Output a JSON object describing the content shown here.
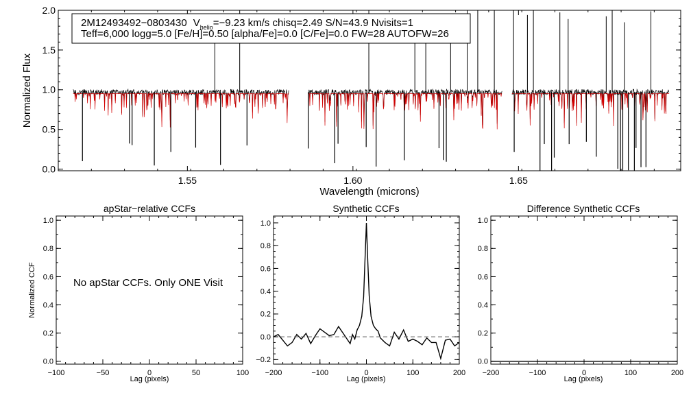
{
  "chart_data": [
    {
      "type": "line",
      "title": "",
      "info_line1": {
        "star": "2M12493492−0803430",
        "v_label": "V",
        "v_sub": "helio",
        "v_rest": "=−9.23 km/s  chisq=2.49  S/N=43.9  Nvisits=1"
      },
      "info_line2": "Teff=6,000 logg=5.0 [Fe/H]=0.50 [alpha/Fe]=0.0 [C/Fe]=0.0 FW=28 AUTOFW=26",
      "xlabel": "Wavelength (microns)",
      "ylabel": "Normalized Flux",
      "xlim": [
        1.511,
        1.699
      ],
      "ylim": [
        -0.02,
        2.0
      ],
      "xticks": [
        1.55,
        1.6,
        1.65
      ],
      "xtick_labels": [
        "1.55",
        "1.60",
        "1.65"
      ],
      "yticks": [
        0.0,
        0.5,
        1.0,
        1.5,
        2.0
      ],
      "ytick_labels": [
        "0.0",
        "0.5",
        "1.0",
        "1.5",
        "2.0"
      ],
      "series": [
        {
          "name": "observed spectrum",
          "color": "#000000",
          "segments": [
            [
              1.5155,
              1.5806
            ],
            [
              1.5865,
              1.645
            ],
            [
              1.648,
              1.6955
            ]
          ],
          "continuum": 0.97
        },
        {
          "name": "synthetic model",
          "color": "#d40000",
          "segments": [
            [
              1.5155,
              1.5806
            ],
            [
              1.5865,
              1.645
            ],
            [
              1.648,
              1.6955
            ]
          ],
          "continuum": 0.95
        }
      ],
      "spikes_up": [
        1.5583,
        1.5658,
        1.6048,
        1.6187,
        1.622,
        1.6295,
        1.6345,
        1.6377,
        1.6427,
        1.6485,
        1.6527,
        1.6545,
        1.6625,
        1.665,
        1.6765,
        1.6783,
        1.682,
        1.69
      ],
      "spikes_down": [
        1.5183,
        1.5325,
        1.5333,
        1.54,
        1.545,
        1.5525,
        1.56,
        1.568,
        1.5865,
        1.5945,
        1.5955,
        1.604,
        1.607,
        1.6155,
        1.626,
        1.6273,
        1.6282,
        1.6487,
        1.6565,
        1.6578,
        1.66,
        1.6608,
        1.6653,
        1.6705,
        1.6735,
        1.68,
        1.6808,
        1.6815,
        1.6832,
        1.685,
        1.6855,
        1.687,
        1.6885
      ]
    },
    {
      "type": "line",
      "title": "apStar−relative CCFs",
      "xlabel": "Lag (pixels)",
      "ylabel": "Normalized CCF",
      "xlim": [
        -100,
        100
      ],
      "ylim": [
        -0.02,
        1.03
      ],
      "xticks": [
        -100,
        -50,
        0,
        50,
        100
      ],
      "xtick_labels": [
        "−100",
        "−50",
        "0",
        "50",
        "100"
      ],
      "yticks": [
        0.0,
        0.2,
        0.4,
        0.6,
        0.8,
        1.0
      ],
      "ytick_labels": [
        "0.0",
        "0.2",
        "0.4",
        "0.6",
        "0.8",
        "1.0"
      ],
      "message": "No apStar CCFs.  Only ONE Visit",
      "series": []
    },
    {
      "type": "line",
      "title": "Synthetic CCFs",
      "xlabel": "Lag (pixels)",
      "ylabel": "",
      "xlim": [
        -200,
        200
      ],
      "ylim": [
        -0.24,
        1.06
      ],
      "xticks": [
        -200,
        -100,
        0,
        100,
        200
      ],
      "xtick_labels": [
        "−200",
        "−100",
        "0",
        "100",
        "200"
      ],
      "yticks": [
        -0.2,
        0.0,
        0.2,
        0.4,
        0.6,
        0.8,
        1.0
      ],
      "ytick_labels": [
        "−0.2",
        "0.0",
        "0.2",
        "0.4",
        "0.6",
        "0.8",
        "1.0"
      ],
      "series": [
        {
          "name": "synthetic CCF",
          "color": "#000000",
          "x": [
            -200,
            -190,
            -180,
            -170,
            -160,
            -150,
            -140,
            -130,
            -120,
            -110,
            -100,
            -90,
            -80,
            -70,
            -60,
            -50,
            -40,
            -35,
            -30,
            -25,
            -20,
            -15,
            -10,
            -6,
            -3,
            0,
            3,
            6,
            10,
            15,
            20,
            25,
            30,
            40,
            50,
            60,
            70,
            80,
            90,
            100,
            110,
            120,
            130,
            140,
            150,
            155,
            160,
            170,
            180,
            190,
            200
          ],
          "y": [
            0.0,
            0.02,
            -0.03,
            -0.08,
            -0.05,
            0.02,
            -0.02,
            0.03,
            -0.06,
            0.01,
            0.07,
            0.04,
            0.01,
            0.02,
            0.09,
            0.03,
            -0.03,
            -0.06,
            0.02,
            -0.02,
            0.06,
            0.1,
            0.18,
            0.35,
            0.68,
            1.0,
            0.66,
            0.36,
            0.18,
            0.1,
            0.07,
            0.05,
            -0.01,
            -0.05,
            -0.08,
            0.04,
            -0.02,
            0.06,
            -0.04,
            -0.02,
            -0.04,
            -0.07,
            -0.01,
            -0.05,
            -0.05,
            -0.12,
            -0.19,
            -0.03,
            -0.02,
            -0.08,
            -0.05
          ]
        },
        {
          "name": "zero level",
          "color": "#555555",
          "style": "dashed",
          "x": [
            -200,
            200
          ],
          "y": [
            0.0,
            0.0
          ]
        }
      ]
    },
    {
      "type": "line",
      "title": "Difference Synthetic CCFs",
      "xlabel": "Lag (pixels)",
      "ylabel": "",
      "xlim": [
        -200,
        200
      ],
      "ylim": [
        -0.02,
        1.03
      ],
      "xticks": [
        -200,
        -100,
        0,
        100,
        200
      ],
      "xtick_labels": [
        "−200",
        "−100",
        "0",
        "100",
        "200"
      ],
      "yticks": [
        0.0,
        0.2,
        0.4,
        0.6,
        0.8,
        1.0
      ],
      "ytick_labels": [
        "0.0",
        "0.2",
        "0.4",
        "0.6",
        "0.8",
        "1.0"
      ],
      "series": [
        {
          "name": "difference CCF",
          "color": "#000000",
          "x": [
            -200,
            200
          ],
          "y": [
            0.0,
            0.0
          ]
        }
      ]
    }
  ]
}
